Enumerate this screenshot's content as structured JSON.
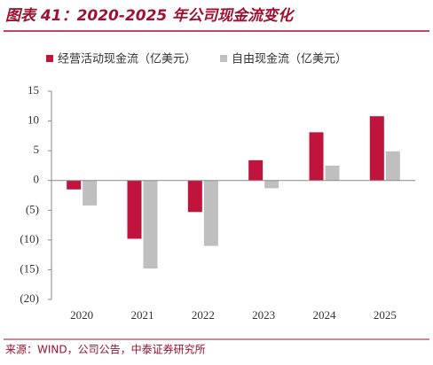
{
  "chart_data": {
    "type": "bar",
    "title": "图表 41：2020-2025 年公司现金流变化",
    "categories": [
      "2020",
      "2021",
      "2022",
      "2023",
      "2024",
      "2025"
    ],
    "series": [
      {
        "name": "经营活动现金流（亿美元）",
        "color": "#c0143c",
        "values": [
          -1.5,
          -9.8,
          -5.3,
          3.4,
          8.1,
          10.8
        ]
      },
      {
        "name": "自由现金流（亿美元）",
        "color": "#bfbfbf",
        "values": [
          -4.2,
          -14.8,
          -11,
          -1.3,
          2.5,
          4.9
        ]
      }
    ],
    "ylim": [
      -20,
      15
    ],
    "yticks": [
      15,
      10,
      5,
      0,
      {
        "value": -5,
        "label": "(5)"
      },
      {
        "value": -10,
        "label": "(10)"
      },
      {
        "value": -15,
        "label": "(15)"
      },
      {
        "value": -20,
        "label": "(20)"
      }
    ],
    "grid": false
  },
  "source": "来源：WIND，公司公告，中泰证券研究所"
}
